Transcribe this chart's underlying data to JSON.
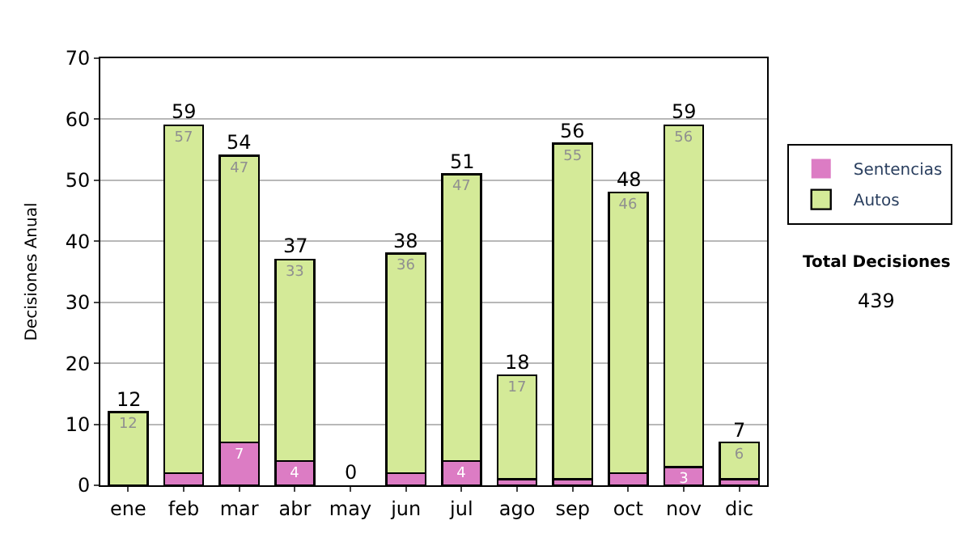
{
  "chart_data": {
    "type": "bar",
    "stacked": true,
    "ylabel": "Decisiones Anual",
    "categories": [
      "ene",
      "feb",
      "mar",
      "abr",
      "may",
      "jun",
      "jul",
      "ago",
      "sep",
      "oct",
      "nov",
      "dic"
    ],
    "series": [
      {
        "name": "Sentencias",
        "color": "#dc7cc4",
        "values": [
          0,
          2,
          7,
          4,
          0,
          2,
          4,
          1,
          1,
          2,
          3,
          1
        ],
        "value_labels": [
          null,
          null,
          "7",
          "4",
          null,
          null,
          "4",
          null,
          null,
          null,
          "3",
          null
        ]
      },
      {
        "name": "Autos",
        "color": "#d4ea98",
        "values": [
          12,
          57,
          47,
          33,
          0,
          36,
          47,
          17,
          55,
          46,
          56,
          6
        ],
        "value_labels": [
          "12",
          "57",
          "47",
          "33",
          null,
          "36",
          "47",
          "17",
          "55",
          "46",
          "56",
          "6"
        ]
      }
    ],
    "totals": [
      "12",
      "59",
      "54",
      "37",
      "0",
      "38",
      "51",
      "18",
      "56",
      "48",
      "59",
      "7"
    ],
    "ylim": [
      0,
      70
    ],
    "yticks": [
      0,
      10,
      20,
      30,
      40,
      50,
      60,
      70
    ],
    "grid": "y",
    "legend": "right",
    "annotations": [
      "Total Decisiones",
      "439"
    ]
  }
}
